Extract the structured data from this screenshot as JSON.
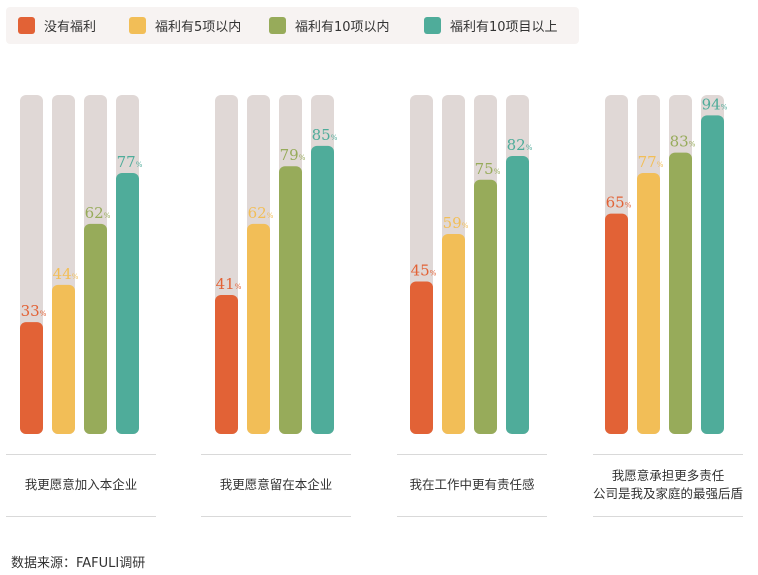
{
  "legend": [
    {
      "label": "没有福利",
      "color": "#e26236"
    },
    {
      "label": "福利有5项以内",
      "color": "#f2be57"
    },
    {
      "label": "福利有10项以内",
      "color": "#97ab5a"
    },
    {
      "label": "福利有10项目以上",
      "color": "#4fac9a"
    }
  ],
  "chart_data": {
    "type": "bar",
    "categories": [
      "我更愿意加入本企业",
      "我更愿意留在本企业",
      "我在工作中更有责任感",
      "我愿意承担更多责任\n公司是我及家庭的最强后盾"
    ],
    "series": [
      {
        "name": "没有福利",
        "values": [
          33,
          41,
          45,
          65
        ]
      },
      {
        "name": "福利有5项以内",
        "values": [
          44,
          62,
          59,
          77
        ]
      },
      {
        "name": "福利有10项以内",
        "values": [
          62,
          79,
          75,
          83
        ]
      },
      {
        "name": "福利有10项目以上",
        "values": [
          77,
          85,
          82,
          94
        ]
      }
    ],
    "ylim": [
      0,
      100
    ],
    "value_suffix": "%",
    "track_color": "#e0d8d6"
  },
  "group_labels": [
    "我更愿意加入本企业",
    "我更愿意留在本企业",
    "我在工作中更有责任感",
    "我愿意承担更多责任\n公司是我及家庭的最强后盾"
  ],
  "source": "数据来源：FAFULI调研"
}
